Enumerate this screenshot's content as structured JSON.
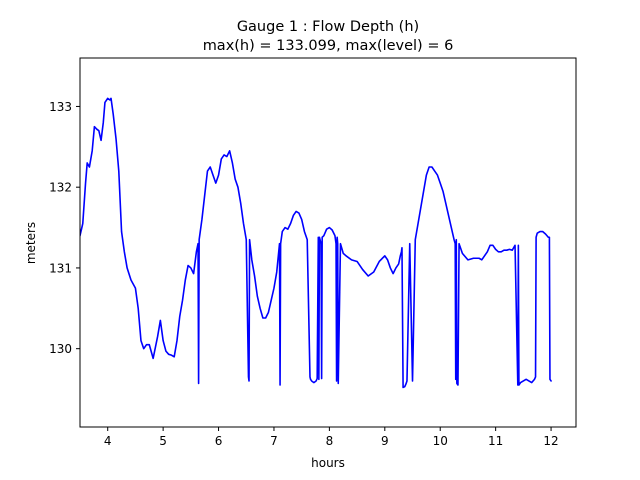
{
  "chart_data": {
    "type": "line",
    "title": "Gauge 1 : Flow Depth (h)",
    "subtitle": "max(h) = 133.099,    max(level) = 6",
    "xlabel": "hours",
    "ylabel": "meters",
    "xlim": [
      3.5,
      12.45
    ],
    "ylim": [
      129.03,
      133.6
    ],
    "x_ticks": [
      4,
      5,
      6,
      7,
      8,
      9,
      10,
      11,
      12
    ],
    "y_ticks": [
      130,
      131,
      132,
      133
    ],
    "grid": false,
    "legend": "none",
    "line_color": "#0000ff",
    "series": [
      {
        "x": [
          3.5,
          3.55,
          3.6,
          3.63,
          3.67,
          3.72,
          3.76,
          3.8,
          3.84,
          3.88,
          3.92,
          3.95,
          4.0,
          4.04,
          4.06,
          4.1,
          4.15,
          4.2,
          4.25,
          4.3,
          4.35,
          4.42,
          4.5,
          4.55,
          4.6,
          4.65,
          4.7,
          4.75,
          4.82,
          4.9,
          4.95,
          5.0,
          5.05,
          5.1,
          5.15,
          5.2,
          5.25,
          5.3,
          5.35,
          5.4,
          5.45,
          5.5,
          5.55,
          5.6,
          5.63,
          5.64,
          5.65,
          5.7,
          5.75,
          5.8,
          5.85,
          5.9,
          5.95,
          6.0,
          6.05,
          6.1,
          6.15,
          6.2,
          6.25,
          6.3,
          6.35,
          6.4,
          6.45,
          6.5,
          6.54,
          6.55,
          6.56,
          6.6,
          6.65,
          6.7,
          6.75,
          6.8,
          6.85,
          6.9,
          6.95,
          7.0,
          7.05,
          7.1,
          7.11,
          7.12,
          7.15,
          7.2,
          7.25,
          7.3,
          7.35,
          7.4,
          7.45,
          7.5,
          7.55,
          7.6,
          7.65,
          7.66,
          7.68,
          7.72,
          7.76,
          7.78,
          7.8,
          7.81,
          7.82,
          7.85,
          7.86,
          7.87,
          7.9,
          7.95,
          8.0,
          8.05,
          8.1,
          8.12,
          8.13,
          8.14,
          8.15,
          8.16,
          8.2,
          8.25,
          8.3,
          8.4,
          8.5,
          8.6,
          8.7,
          8.8,
          8.9,
          9.0,
          9.05,
          9.1,
          9.15,
          9.2,
          9.25,
          9.28,
          9.3,
          9.31,
          9.33,
          9.36,
          9.38,
          9.39,
          9.4,
          9.45,
          9.5,
          9.55,
          9.6,
          9.65,
          9.7,
          9.75,
          9.8,
          9.85,
          9.9,
          9.95,
          10.0,
          10.05,
          10.1,
          10.15,
          10.2,
          10.25,
          10.27,
          10.28,
          10.29,
          10.3,
          10.32,
          10.34,
          10.4,
          10.5,
          10.6,
          10.7,
          10.75,
          10.8,
          10.85,
          10.9,
          10.95,
          11.0,
          11.05,
          11.1,
          11.15,
          11.2,
          11.25,
          11.3,
          11.35,
          11.4,
          11.41,
          11.42,
          11.45,
          11.5,
          11.55,
          11.6,
          11.65,
          11.7,
          11.72,
          11.73,
          11.75,
          11.8,
          11.85,
          11.9,
          11.95,
          11.97,
          11.98,
          12.0
        ],
        "y": [
          131.4,
          131.55,
          132.05,
          132.3,
          132.25,
          132.45,
          132.75,
          132.72,
          132.7,
          132.58,
          132.8,
          133.05,
          133.1,
          133.08,
          133.1,
          132.9,
          132.6,
          132.2,
          131.45,
          131.2,
          131.0,
          130.85,
          130.75,
          130.5,
          130.1,
          130.0,
          130.05,
          130.05,
          129.88,
          130.15,
          130.35,
          130.1,
          129.97,
          129.93,
          129.92,
          129.9,
          130.1,
          130.4,
          130.6,
          130.85,
          131.03,
          131.0,
          130.93,
          131.2,
          131.3,
          129.57,
          131.35,
          131.6,
          131.9,
          132.2,
          132.25,
          132.15,
          132.05,
          132.15,
          132.35,
          132.4,
          132.38,
          132.45,
          132.3,
          132.1,
          132.0,
          131.8,
          131.55,
          131.35,
          129.65,
          129.6,
          131.35,
          131.1,
          130.9,
          130.65,
          130.5,
          130.38,
          130.38,
          130.45,
          130.6,
          130.75,
          130.95,
          131.3,
          129.55,
          131.3,
          131.45,
          131.5,
          131.48,
          131.55,
          131.65,
          131.7,
          131.68,
          131.6,
          131.45,
          131.35,
          129.65,
          129.62,
          129.6,
          129.58,
          129.6,
          129.63,
          131.38,
          129.62,
          131.38,
          131.3,
          129.63,
          131.38,
          131.4,
          131.48,
          131.5,
          131.47,
          131.4,
          131.3,
          129.6,
          131.38,
          131.3,
          129.57,
          131.3,
          131.18,
          131.15,
          131.1,
          131.08,
          130.98,
          130.9,
          130.95,
          131.08,
          131.15,
          131.1,
          131.0,
          130.93,
          131.0,
          131.05,
          131.15,
          131.2,
          131.25,
          129.52,
          129.53,
          129.56,
          129.58,
          129.6,
          131.3,
          129.6,
          131.35,
          131.55,
          131.75,
          131.95,
          132.15,
          132.25,
          132.25,
          132.2,
          132.15,
          132.05,
          131.95,
          131.8,
          131.65,
          131.5,
          131.35,
          131.3,
          129.62,
          131.35,
          129.57,
          129.55,
          131.3,
          131.18,
          131.1,
          131.12,
          131.12,
          131.1,
          131.15,
          131.2,
          131.28,
          131.28,
          131.23,
          131.2,
          131.2,
          131.22,
          131.22,
          131.23,
          131.22,
          131.28,
          129.55,
          131.28,
          129.55,
          129.58,
          129.6,
          129.62,
          129.6,
          129.58,
          129.62,
          129.65,
          131.38,
          131.43,
          131.45,
          131.45,
          131.42,
          131.38,
          131.38,
          129.62,
          129.6
        ]
      }
    ]
  }
}
